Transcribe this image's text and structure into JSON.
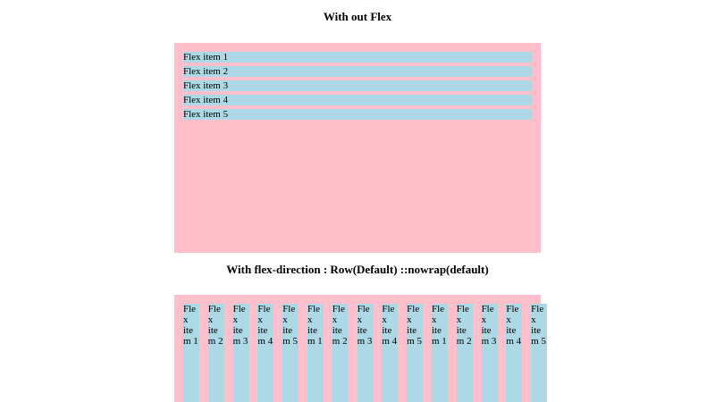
{
  "section1": {
    "heading": "With out Flex",
    "items": [
      "Flex item 1",
      "Flex item 2",
      "Flex item 3",
      "Flex item 4",
      "Flex item 5"
    ]
  },
  "section2": {
    "heading": "With flex-direction : Row(Default) ::nowrap(default)",
    "items": [
      "Flex item 1",
      "Flex item 2",
      "Flex item 3",
      "Flex item 4",
      "Flex item 5",
      "Flex item 1",
      "Flex item 2",
      "Flex item 3",
      "Flex item 4",
      "Flex item 5",
      "Flex item 1",
      "Flex item 2",
      "Flex item 3",
      "Flex item 4",
      "Flex item 5"
    ]
  },
  "colors": {
    "container_bg": "#ffc0cb",
    "item_bg": "#add8e6"
  }
}
